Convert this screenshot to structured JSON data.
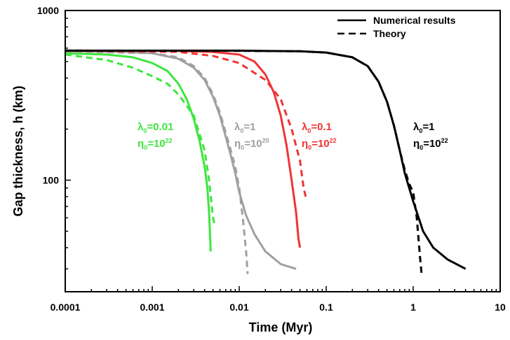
{
  "chart_data": {
    "type": "line",
    "title": "",
    "xlabel": "Time (Myr)",
    "ylabel": "Gap thickness, h (km)",
    "xscale": "log",
    "yscale": "log",
    "xlim": [
      0.0001,
      10
    ],
    "ylim": [
      22,
      1000
    ],
    "x_ticks": [
      {
        "value": 0.0001,
        "label": "0.0001"
      },
      {
        "value": 0.001,
        "label": "0.001"
      },
      {
        "value": 0.01,
        "label": "0.01"
      },
      {
        "value": 0.1,
        "label": "0.1"
      },
      {
        "value": 1,
        "label": "1"
      },
      {
        "value": 10,
        "label": "10"
      }
    ],
    "y_ticks": [
      {
        "value": 100,
        "label": "100"
      },
      {
        "value": 1000,
        "label": "1000"
      }
    ],
    "legend": {
      "placement": "top-right",
      "entries": [
        {
          "label": "Numerical results",
          "style": "solid"
        },
        {
          "label": "Theory",
          "style": "dashed"
        }
      ]
    },
    "series": [
      {
        "color": "#3ee63e",
        "style": "solid",
        "points": [
          [
            0.0001,
            560
          ],
          [
            0.0003,
            550
          ],
          [
            0.0006,
            530
          ],
          [
            0.001,
            490
          ],
          [
            0.0015,
            440
          ],
          [
            0.002,
            370
          ],
          [
            0.0025,
            300
          ],
          [
            0.003,
            230
          ],
          [
            0.0035,
            170
          ],
          [
            0.004,
            120
          ],
          [
            0.0043,
            90
          ],
          [
            0.0045,
            65
          ],
          [
            0.0046,
            50
          ],
          [
            0.0047,
            38
          ]
        ]
      },
      {
        "color": "#3ee63e",
        "style": "dashed",
        "points": [
          [
            0.0001,
            550
          ],
          [
            0.0003,
            510
          ],
          [
            0.0006,
            460
          ],
          [
            0.001,
            410
          ],
          [
            0.0015,
            370
          ],
          [
            0.002,
            320
          ],
          [
            0.003,
            240
          ],
          [
            0.004,
            150
          ],
          [
            0.0045,
            100
          ],
          [
            0.005,
            60
          ],
          [
            0.0052,
            55
          ]
        ]
      },
      {
        "color": "#a0a0a0",
        "style": "solid",
        "points": [
          [
            0.0001,
            575
          ],
          [
            0.0005,
            570
          ],
          [
            0.001,
            560
          ],
          [
            0.002,
            520
          ],
          [
            0.003,
            460
          ],
          [
            0.004,
            390
          ],
          [
            0.005,
            310
          ],
          [
            0.006,
            240
          ],
          [
            0.007,
            180
          ],
          [
            0.008,
            140
          ],
          [
            0.009,
            110
          ],
          [
            0.01,
            85
          ],
          [
            0.012,
            62
          ],
          [
            0.015,
            48
          ],
          [
            0.02,
            38
          ],
          [
            0.03,
            32
          ],
          [
            0.045,
            30
          ]
        ]
      },
      {
        "color": "#a0a0a0",
        "style": "dashed",
        "points": [
          [
            0.0001,
            575
          ],
          [
            0.001,
            560
          ],
          [
            0.002,
            530
          ],
          [
            0.003,
            470
          ],
          [
            0.004,
            400
          ],
          [
            0.005,
            320
          ],
          [
            0.006,
            250
          ],
          [
            0.007,
            190
          ],
          [
            0.008,
            150
          ],
          [
            0.009,
            120
          ],
          [
            0.01,
            90
          ],
          [
            0.011,
            60
          ],
          [
            0.012,
            38
          ],
          [
            0.0125,
            28
          ]
        ]
      },
      {
        "color": "#f03434",
        "style": "solid",
        "points": [
          [
            0.0001,
            580
          ],
          [
            0.002,
            578
          ],
          [
            0.005,
            570
          ],
          [
            0.01,
            550
          ],
          [
            0.015,
            500
          ],
          [
            0.02,
            420
          ],
          [
            0.025,
            330
          ],
          [
            0.03,
            240
          ],
          [
            0.035,
            160
          ],
          [
            0.04,
            100
          ],
          [
            0.045,
            65
          ],
          [
            0.048,
            45
          ],
          [
            0.05,
            40
          ]
        ]
      },
      {
        "color": "#f03434",
        "style": "dashed",
        "points": [
          [
            0.0001,
            580
          ],
          [
            0.002,
            570
          ],
          [
            0.005,
            540
          ],
          [
            0.01,
            490
          ],
          [
            0.02,
            390
          ],
          [
            0.03,
            300
          ],
          [
            0.04,
            200
          ],
          [
            0.05,
            130
          ],
          [
            0.055,
            90
          ],
          [
            0.058,
            80
          ]
        ]
      },
      {
        "color": "#000000",
        "style": "solid",
        "points": [
          [
            0.0001,
            580
          ],
          [
            0.01,
            580
          ],
          [
            0.05,
            575
          ],
          [
            0.1,
            565
          ],
          [
            0.2,
            530
          ],
          [
            0.3,
            470
          ],
          [
            0.4,
            380
          ],
          [
            0.5,
            290
          ],
          [
            0.6,
            210
          ],
          [
            0.7,
            150
          ],
          [
            0.8,
            110
          ],
          [
            1.0,
            75
          ],
          [
            1.3,
            50
          ],
          [
            1.7,
            40
          ],
          [
            2.5,
            34
          ],
          [
            4.0,
            30
          ]
        ]
      },
      {
        "color": "#000000",
        "style": "dashed",
        "points": [
          [
            0.0001,
            580
          ],
          [
            0.01,
            578
          ],
          [
            0.05,
            575
          ],
          [
            0.1,
            565
          ],
          [
            0.2,
            530
          ],
          [
            0.3,
            470
          ],
          [
            0.4,
            380
          ],
          [
            0.5,
            290
          ],
          [
            0.6,
            210
          ],
          [
            0.7,
            150
          ],
          [
            0.8,
            115
          ],
          [
            0.9,
            95
          ],
          [
            1.0,
            85
          ],
          [
            1.1,
            60
          ],
          [
            1.2,
            35
          ],
          [
            1.25,
            28
          ]
        ]
      }
    ],
    "annotations": [
      {
        "color": "#3ee63e",
        "lambda_symbol": "λ",
        "lambda_sub": "0",
        "lambda_value": "=0.01",
        "eta_symbol": "η",
        "eta_sub": "0",
        "eta_value": "=10",
        "eta_exp": "22"
      },
      {
        "color": "#a0a0a0",
        "lambda_symbol": "λ",
        "lambda_sub": "0",
        "lambda_value": "=1",
        "eta_symbol": "η",
        "eta_sub": "0",
        "eta_value": "=10",
        "eta_exp": "20"
      },
      {
        "color": "#f03434",
        "lambda_symbol": "λ",
        "lambda_sub": "0",
        "lambda_value": "=0.1",
        "eta_symbol": "η",
        "eta_sub": "0",
        "eta_value": "=10",
        "eta_exp": "22"
      },
      {
        "color": "#000000",
        "lambda_symbol": "λ",
        "lambda_sub": "0",
        "lambda_value": "=1",
        "eta_symbol": "η",
        "eta_sub": "0",
        "eta_value": "=10",
        "eta_exp": "22"
      }
    ]
  }
}
